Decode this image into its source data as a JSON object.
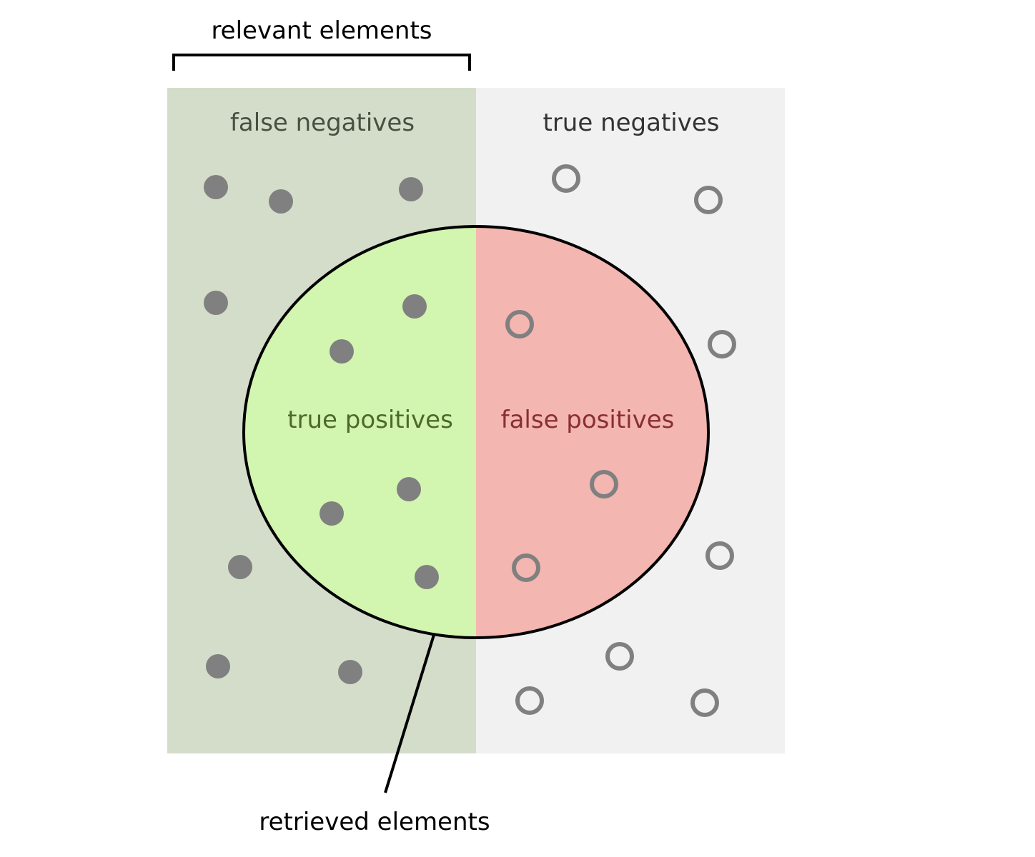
{
  "labels": {
    "relevant": "relevant elements",
    "false_negatives": "false negatives",
    "true_negatives": "true negatives",
    "true_positives": "true positives",
    "false_positives": "false positives",
    "retrieved": "retrieved elements"
  },
  "colors": {
    "relevant_bg": "#d4ddca",
    "irrelevant_bg": "#f1f1f1",
    "true_positive_fill": "#d2f5b0",
    "false_positive_fill": "#f4b6b0",
    "outline": "#000000",
    "dot": "#808080",
    "false_negatives_text": "#48503f",
    "true_negatives_text": "#333333",
    "true_positives_text": "#4c6a2c",
    "false_positives_text": "#883030",
    "label_text": "#000000"
  },
  "icons": {
    "relevant_element": "filled-circle",
    "irrelevant_element": "hollow-circle"
  }
}
